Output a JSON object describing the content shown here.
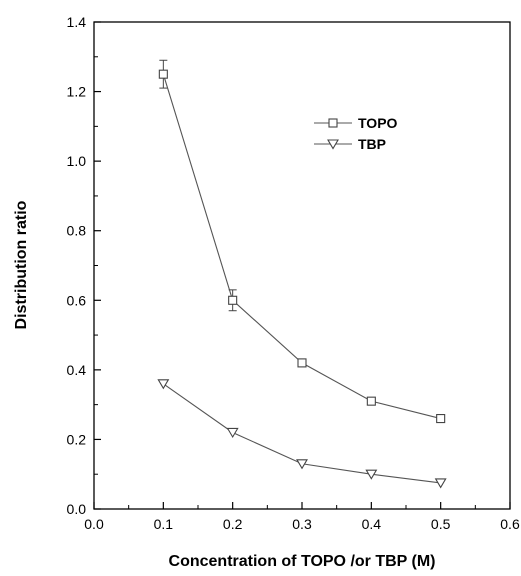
{
  "chart_data": {
    "type": "line",
    "xlabel": "Concentration of TOPO /or TBP (M)",
    "ylabel": "Distribution ratio",
    "xlim": [
      0.0,
      0.6
    ],
    "ylim": [
      0.0,
      1.4
    ],
    "x_ticks": [
      "0.0",
      "0.1",
      "0.2",
      "0.3",
      "0.4",
      "0.5",
      "0.6"
    ],
    "y_ticks": [
      "0.0",
      "0.2",
      "0.4",
      "0.6",
      "0.8",
      "1.0",
      "1.2",
      "1.4"
    ],
    "grid": false,
    "legend_position": "top-right",
    "series": [
      {
        "name": "TOPO",
        "marker": "square",
        "x": [
          0.1,
          0.2,
          0.3,
          0.4,
          0.5
        ],
        "y": [
          1.25,
          0.6,
          0.42,
          0.31,
          0.26
        ],
        "error": [
          0.04,
          0.03,
          0.01,
          0.01,
          0.005
        ]
      },
      {
        "name": "TBP",
        "marker": "triangle-down",
        "x": [
          0.1,
          0.2,
          0.3,
          0.4,
          0.5
        ],
        "y": [
          0.36,
          0.22,
          0.13,
          0.1,
          0.075
        ],
        "error": [
          0.0,
          0.0,
          0.0,
          0.0,
          0.0
        ]
      }
    ]
  }
}
